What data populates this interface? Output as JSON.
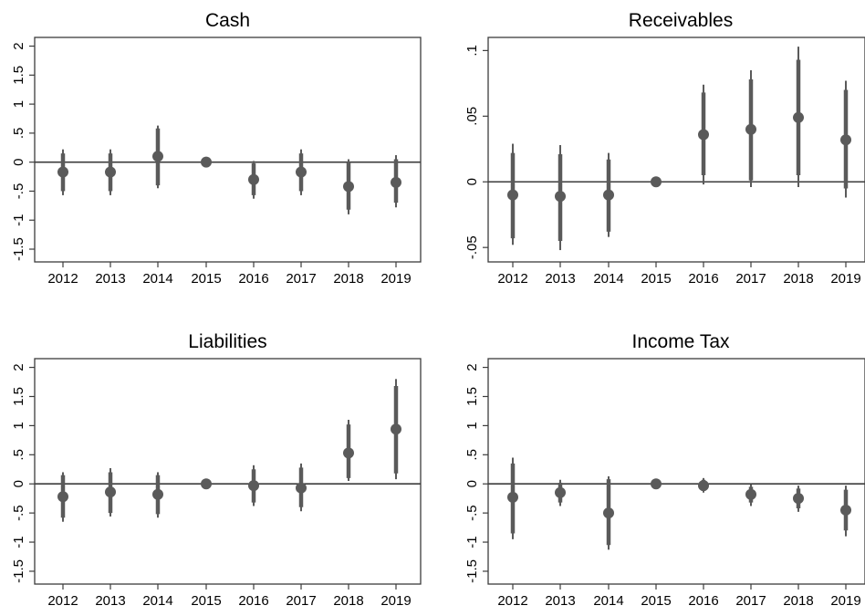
{
  "chart_data": [
    {
      "type": "scatter",
      "subtype": "coefficient-plot-with-confidence-intervals",
      "title": "Cash",
      "x": [
        "2012",
        "2013",
        "2014",
        "2015",
        "2016",
        "2017",
        "2018",
        "2019"
      ],
      "estimates": [
        -0.17,
        -0.17,
        0.1,
        0.0,
        -0.3,
        -0.17,
        -0.42,
        -0.35
      ],
      "ci_thick": [
        [
          -0.5,
          0.15
        ],
        [
          -0.5,
          0.15
        ],
        [
          -0.4,
          0.58
        ],
        [
          0.0,
          0.0
        ],
        [
          -0.57,
          -0.02
        ],
        [
          -0.5,
          0.15
        ],
        [
          -0.82,
          0.0
        ],
        [
          -0.7,
          0.05
        ]
      ],
      "ci_thin": [
        [
          -0.57,
          0.22
        ],
        [
          -0.57,
          0.22
        ],
        [
          -0.45,
          0.63
        ],
        [
          0.0,
          0.0
        ],
        [
          -0.63,
          0.02
        ],
        [
          -0.57,
          0.22
        ],
        [
          -0.9,
          0.05
        ],
        [
          -0.78,
          0.12
        ]
      ],
      "yticks": [
        "2",
        "1.5",
        "1",
        ".5",
        "0",
        "-.5",
        "-1",
        "-1.5"
      ],
      "ytick_values": [
        2,
        1.5,
        1,
        0.5,
        0,
        -0.5,
        -1,
        -1.5
      ],
      "ylim": [
        -1.72,
        2.15
      ],
      "xlabel": "",
      "ylabel": "",
      "grid": false
    },
    {
      "type": "scatter",
      "subtype": "coefficient-plot-with-confidence-intervals",
      "title": "Receivables",
      "x": [
        "2012",
        "2013",
        "2014",
        "2015",
        "2016",
        "2017",
        "2018",
        "2019"
      ],
      "estimates": [
        -0.01,
        -0.011,
        -0.01,
        0.0,
        0.036,
        0.04,
        0.049,
        0.032
      ],
      "ci_thick": [
        [
          -0.043,
          0.022
        ],
        [
          -0.045,
          0.021
        ],
        [
          -0.038,
          0.017
        ],
        [
          0.0,
          0.0
        ],
        [
          0.005,
          0.068
        ],
        [
          0.001,
          0.078
        ],
        [
          0.005,
          0.093
        ],
        [
          -0.005,
          0.07
        ]
      ],
      "ci_thin": [
        [
          -0.048,
          0.029
        ],
        [
          -0.052,
          0.028
        ],
        [
          -0.042,
          0.022
        ],
        [
          0.0,
          0.0
        ],
        [
          -0.002,
          0.074
        ],
        [
          -0.004,
          0.085
        ],
        [
          -0.004,
          0.103
        ],
        [
          -0.012,
          0.077
        ]
      ],
      "yticks": [
        ".1",
        ".05",
        "0",
        "-.05"
      ],
      "ytick_values": [
        0.1,
        0.05,
        0,
        -0.05
      ],
      "ylim": [
        -0.061,
        0.11
      ],
      "xlabel": "",
      "ylabel": "",
      "grid": false
    },
    {
      "type": "scatter",
      "subtype": "coefficient-plot-with-confidence-intervals",
      "title": "Liabilities",
      "x": [
        "2012",
        "2013",
        "2014",
        "2015",
        "2016",
        "2017",
        "2018",
        "2019"
      ],
      "estimates": [
        -0.22,
        -0.14,
        -0.18,
        0.0,
        -0.03,
        -0.07,
        0.53,
        0.94
      ],
      "ci_thick": [
        [
          -0.58,
          0.15
        ],
        [
          -0.5,
          0.2
        ],
        [
          -0.52,
          0.15
        ],
        [
          0.0,
          0.0
        ],
        [
          -0.32,
          0.25
        ],
        [
          -0.4,
          0.28
        ],
        [
          0.1,
          1.02
        ],
        [
          0.18,
          1.68
        ]
      ],
      "ci_thin": [
        [
          -0.65,
          0.2
        ],
        [
          -0.56,
          0.27
        ],
        [
          -0.58,
          0.2
        ],
        [
          0.0,
          0.0
        ],
        [
          -0.38,
          0.32
        ],
        [
          -0.47,
          0.35
        ],
        [
          0.05,
          1.1
        ],
        [
          0.08,
          1.8
        ]
      ],
      "yticks": [
        "2",
        "1.5",
        "1",
        ".5",
        "0",
        "-.5",
        "-1",
        "-1.5"
      ],
      "ytick_values": [
        2,
        1.5,
        1,
        0.5,
        0,
        -0.5,
        -1,
        -1.5
      ],
      "ylim": [
        -1.72,
        2.15
      ],
      "xlabel": "",
      "ylabel": "",
      "grid": false
    },
    {
      "type": "scatter",
      "subtype": "coefficient-plot-with-confidence-intervals",
      "title": "Income Tax",
      "x": [
        "2012",
        "2013",
        "2014",
        "2015",
        "2016",
        "2017",
        "2018",
        "2019"
      ],
      "estimates": [
        -0.23,
        -0.15,
        -0.5,
        0.0,
        -0.03,
        -0.18,
        -0.25,
        -0.45
      ],
      "ci_thick": [
        [
          -0.85,
          0.35
        ],
        [
          -0.32,
          0.02
        ],
        [
          -1.05,
          0.08
        ],
        [
          0.0,
          0.0
        ],
        [
          -0.12,
          0.07
        ],
        [
          -0.32,
          -0.05
        ],
        [
          -0.42,
          -0.08
        ],
        [
          -0.8,
          -0.1
        ]
      ],
      "ci_thin": [
        [
          -0.95,
          0.45
        ],
        [
          -0.38,
          0.07
        ],
        [
          -1.13,
          0.13
        ],
        [
          0.0,
          0.0
        ],
        [
          -0.15,
          0.1
        ],
        [
          -0.38,
          -0.01
        ],
        [
          -0.48,
          -0.03
        ],
        [
          -0.9,
          -0.03
        ]
      ],
      "yticks": [
        "2",
        "1.5",
        "1",
        ".5",
        "0",
        "-.5",
        "-1",
        "-1.5"
      ],
      "ytick_values": [
        2,
        1.5,
        1,
        0.5,
        0,
        -0.5,
        -1,
        -1.5
      ],
      "ylim": [
        -1.72,
        2.15
      ],
      "xlabel": "",
      "ylabel": "",
      "grid": false
    }
  ]
}
